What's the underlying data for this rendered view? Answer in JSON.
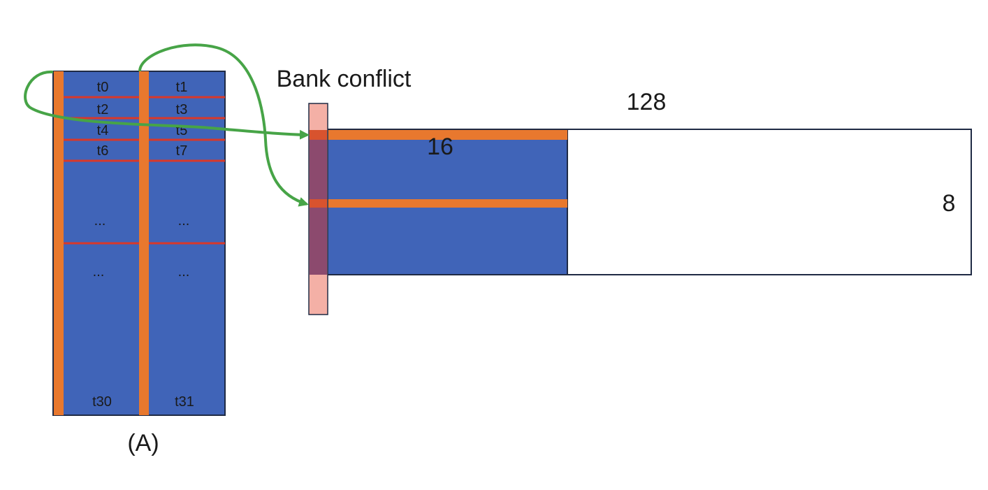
{
  "labels": {
    "title": "Bank conflict",
    "width_label": "128",
    "tile_width_label": "16",
    "height_label": "8",
    "caption": "(A)"
  },
  "threads": {
    "rows": [
      [
        "t0",
        "t1"
      ],
      [
        "t2",
        "t3"
      ],
      [
        "t4",
        "t5"
      ],
      [
        "t6",
        "t7"
      ]
    ],
    "ellipsis": [
      "...",
      "...",
      "...",
      "..."
    ],
    "last": [
      "t30",
      "t31"
    ]
  },
  "colors": {
    "blue": "#4064b8",
    "orange": "#e8782e",
    "red": "#d8382a",
    "pink": "#f4b0a6",
    "overlay": "#8c4a6e",
    "green": "#47a447",
    "border": "#1f2a44"
  }
}
